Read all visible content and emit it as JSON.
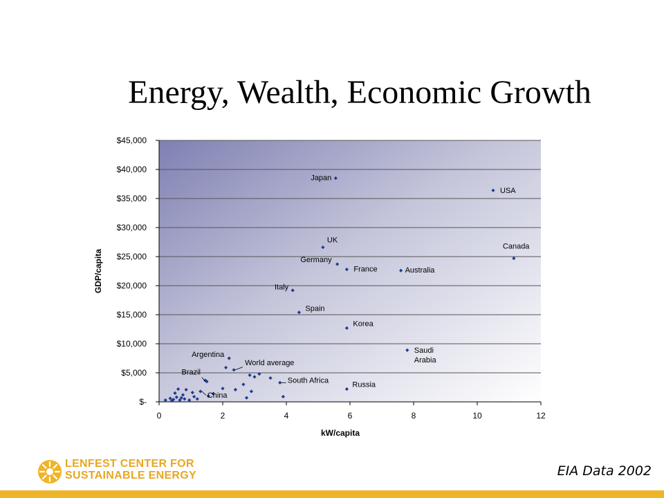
{
  "slide": {
    "title": "Energy, Wealth, Economic Growth",
    "source": "EIA Data 2002",
    "logo_line1": "LENFEST CENTER FOR",
    "logo_line2": "SUSTAINABLE ENERGY"
  },
  "colors": {
    "marker": "#1f3b8f",
    "plot_gradient_start": "#7f80b2",
    "plot_gradient_end": "#ffffff",
    "gridline": "#555555",
    "accent": "#f0b429"
  },
  "chart_data": {
    "type": "scatter",
    "xlabel": "kW/capita",
    "ylabel": "GDP/capita",
    "xlim": [
      0,
      12
    ],
    "ylim": [
      0,
      45000
    ],
    "xticks": [
      "0",
      "2",
      "4",
      "6",
      "8",
      "10",
      "12"
    ],
    "yticks": [
      "$-",
      "$5,000",
      "$10,000",
      "$15,000",
      "$20,000",
      "$25,000",
      "$30,000",
      "$35,000",
      "$40,000",
      "$45,000"
    ],
    "grid": "horizontal",
    "labeled_points": [
      {
        "label": "Japan",
        "x": 5.55,
        "y": 38500
      },
      {
        "label": "USA",
        "x": 10.5,
        "y": 36400
      },
      {
        "label": "UK",
        "x": 5.15,
        "y": 26600
      },
      {
        "label": "Canada",
        "x": 11.15,
        "y": 24700
      },
      {
        "label": "Germany",
        "x": 5.6,
        "y": 23700
      },
      {
        "label": "France",
        "x": 5.9,
        "y": 22800
      },
      {
        "label": "Australia",
        "x": 7.6,
        "y": 22600
      },
      {
        "label": "Italy",
        "x": 4.2,
        "y": 19200
      },
      {
        "label": "Spain",
        "x": 4.4,
        "y": 15400
      },
      {
        "label": "Korea",
        "x": 5.9,
        "y": 12700
      },
      {
        "label": "Saudi Arabia",
        "x": 7.8,
        "y": 8900
      },
      {
        "label": "Argentina",
        "x": 2.2,
        "y": 7500
      },
      {
        "label": "World average",
        "x": 2.35,
        "y": 5500
      },
      {
        "label": "Brazil",
        "x": 1.5,
        "y": 3500
      },
      {
        "label": "South Africa",
        "x": 3.8,
        "y": 3300
      },
      {
        "label": "Russia",
        "x": 5.9,
        "y": 2200
      },
      {
        "label": "China",
        "x": 1.3,
        "y": 1800
      }
    ],
    "other_points": [
      {
        "x": 0.2,
        "y": 300
      },
      {
        "x": 0.35,
        "y": 600
      },
      {
        "x": 0.4,
        "y": 200
      },
      {
        "x": 0.45,
        "y": 400
      },
      {
        "x": 0.5,
        "y": 1500
      },
      {
        "x": 0.55,
        "y": 800
      },
      {
        "x": 0.6,
        "y": 2200
      },
      {
        "x": 0.65,
        "y": 300
      },
      {
        "x": 0.7,
        "y": 700
      },
      {
        "x": 0.75,
        "y": 1200
      },
      {
        "x": 0.8,
        "y": 500
      },
      {
        "x": 0.85,
        "y": 2100
      },
      {
        "x": 0.95,
        "y": 300
      },
      {
        "x": 1.05,
        "y": 1600
      },
      {
        "x": 1.1,
        "y": 900
      },
      {
        "x": 1.2,
        "y": 500
      },
      {
        "x": 1.45,
        "y": 3700
      },
      {
        "x": 1.55,
        "y": 1000
      },
      {
        "x": 1.7,
        "y": 1400
      },
      {
        "x": 2.0,
        "y": 2300
      },
      {
        "x": 2.1,
        "y": 5900
      },
      {
        "x": 2.4,
        "y": 2100
      },
      {
        "x": 2.65,
        "y": 3000
      },
      {
        "x": 2.75,
        "y": 700
      },
      {
        "x": 2.85,
        "y": 4600
      },
      {
        "x": 2.9,
        "y": 1800
      },
      {
        "x": 3.0,
        "y": 4300
      },
      {
        "x": 3.15,
        "y": 4800
      },
      {
        "x": 3.5,
        "y": 4100
      },
      {
        "x": 3.9,
        "y": 900
      }
    ]
  }
}
